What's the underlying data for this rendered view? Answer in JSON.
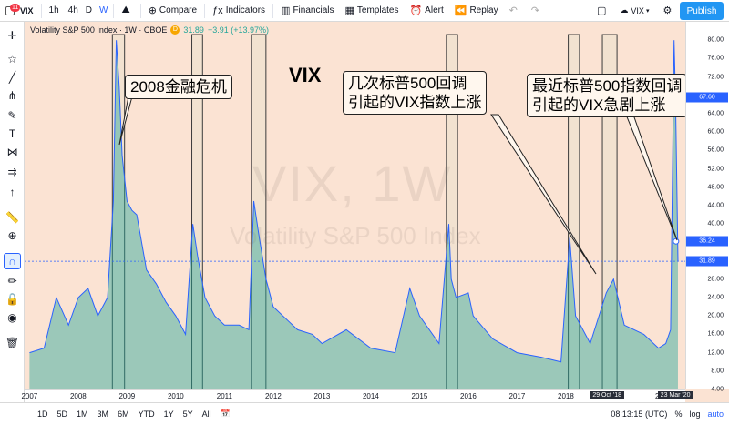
{
  "toolbar": {
    "notification_count": "11",
    "symbol": "VIX",
    "intervals": [
      "1h",
      "4h",
      "D",
      "W"
    ],
    "active_interval": "W",
    "compare_label": "Compare",
    "indicators_label": "Indicators",
    "financials_label": "Financials",
    "templates_label": "Templates",
    "alert_label": "Alert",
    "replay_label": "Replay",
    "layout_symbol": "VIX",
    "publish_label": "Publish"
  },
  "legend": {
    "title": "Volatility S&P 500 Index · 1W · CBOE",
    "badge": "D",
    "value": "31.89",
    "change": "+3.91 (+13.97%)"
  },
  "watermark": {
    "line1": "VIX, 1W",
    "line2": "Volatility S&P 500 Index"
  },
  "annotations": {
    "title": "VIX",
    "crisis_2008": "2008金融危机",
    "pullbacks_line1": "几次标普500回调",
    "pullbacks_line2": "引起的VIX指数上涨",
    "recent_line1": "最近标普500指数回调",
    "recent_line2": "引起的VIX急剧上涨"
  },
  "price_scale": {
    "ticks": [
      "80.00",
      "76.00",
      "72.00",
      "68.00",
      "64.00",
      "60.00",
      "56.00",
      "52.00",
      "48.00",
      "44.00",
      "40.00",
      "36.00",
      "32.00",
      "28.00",
      "24.00",
      "20.00",
      "16.00",
      "12.00",
      "8.00",
      "4.00"
    ],
    "label_high": "67.60",
    "label_mid": "36.24",
    "label_last": "31.89"
  },
  "time_axis": {
    "ticks": [
      "2007",
      "2008",
      "2009",
      "2010",
      "2011",
      "2012",
      "2013",
      "2014",
      "2015",
      "2016",
      "2017",
      "2018",
      "2019",
      "2020"
    ],
    "label_oct18": "29 Oct '18",
    "label_mar20": "23 Mar '20"
  },
  "bottom": {
    "ranges": [
      "1D",
      "5D",
      "1M",
      "3M",
      "6M",
      "YTD",
      "1Y",
      "5Y",
      "All"
    ],
    "clock": "08:13:15 (UTC)",
    "percent": "%",
    "log": "log",
    "auto": "auto"
  },
  "chart_data": {
    "type": "area",
    "symbol": "VIX",
    "interval": "1W",
    "ylim": [
      4,
      84
    ],
    "x": [
      2007.0,
      2007.3,
      2007.55,
      2007.8,
      2008.0,
      2008.2,
      2008.4,
      2008.6,
      2008.72,
      2008.78,
      2008.84,
      2008.9,
      2009.0,
      2009.1,
      2009.2,
      2009.4,
      2009.6,
      2009.8,
      2010.0,
      2010.2,
      2010.35,
      2010.45,
      2010.6,
      2010.8,
      2011.0,
      2011.3,
      2011.5,
      2011.6,
      2011.7,
      2011.85,
      2012.0,
      2012.3,
      2012.5,
      2012.8,
      2013.0,
      2013.5,
      2014.0,
      2014.5,
      2014.8,
      2015.0,
      2015.4,
      2015.6,
      2015.65,
      2015.75,
      2016.0,
      2016.1,
      2016.5,
      2017.0,
      2017.5,
      2017.9,
      2018.08,
      2018.2,
      2018.5,
      2018.83,
      2018.98,
      2019.2,
      2019.6,
      2019.9,
      2020.05,
      2020.15,
      2020.22,
      2020.25,
      2020.3
    ],
    "values": [
      12,
      13,
      24,
      18,
      24,
      26,
      20,
      24,
      45,
      80,
      70,
      55,
      45,
      43,
      42,
      30,
      27,
      23,
      20,
      16,
      40,
      33,
      24,
      20,
      18,
      18,
      17,
      45,
      38,
      28,
      22,
      19,
      17,
      16,
      14,
      17,
      13,
      12,
      26,
      20,
      14,
      40,
      28,
      24,
      25,
      20,
      15,
      12,
      11,
      10,
      37,
      20,
      14,
      25,
      28,
      18,
      16,
      13,
      14,
      17,
      80,
      67.6,
      31.89
    ],
    "highlight_ranges": [
      [
        2008.7,
        2008.95
      ],
      [
        2010.33,
        2010.55
      ],
      [
        2011.55,
        2011.85
      ],
      [
        2015.55,
        2015.78
      ],
      [
        2018.05,
        2018.28
      ],
      [
        2018.75,
        2019.05
      ]
    ]
  }
}
